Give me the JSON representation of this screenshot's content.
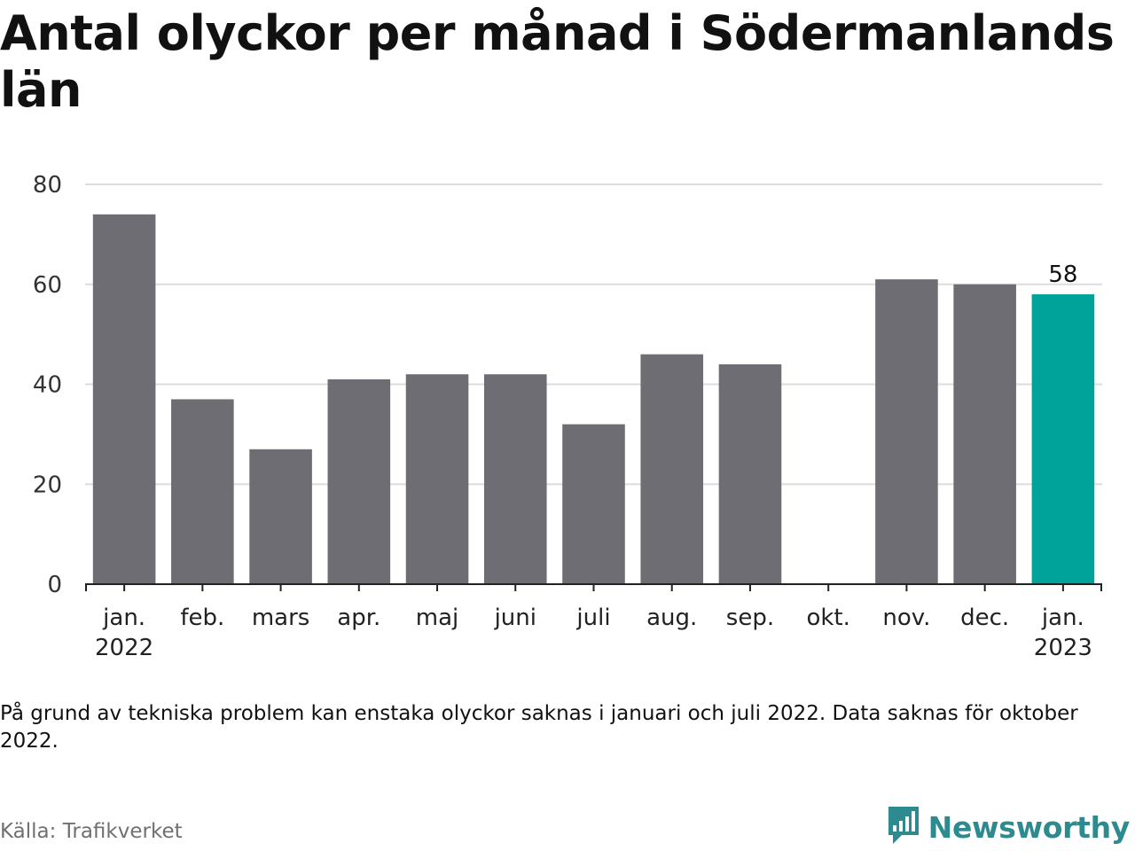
{
  "title": "Antal olyckor per månad i Södermanlands län",
  "note": "På grund av tekniska problem kan enstaka olyckor saknas i januari och juli 2022. Data saknas för oktober 2022.",
  "source": "Källa: Trafikverket",
  "brand": {
    "name": "Newsworthy",
    "icon": "newsworthy-logo-icon",
    "color": "#2d8b8f"
  },
  "chart_data": {
    "type": "bar",
    "categories": [
      "jan.",
      "feb.",
      "mars",
      "apr.",
      "maj",
      "juni",
      "juli",
      "aug.",
      "sep.",
      "okt.",
      "nov.",
      "dec.",
      "jan."
    ],
    "category_years": [
      "2022",
      "",
      "",
      "",
      "",
      "",
      "",
      "",
      "",
      "",
      "",
      "",
      "2023"
    ],
    "values": [
      74,
      37,
      27,
      41,
      42,
      42,
      32,
      46,
      44,
      null,
      61,
      60,
      58
    ],
    "highlight_index": 12,
    "data_labels": [
      "",
      "",
      "",
      "",
      "",
      "",
      "",
      "",
      "",
      "",
      "",
      "",
      "58"
    ],
    "yticks": [
      0,
      20,
      40,
      60,
      80
    ],
    "ylim": [
      0,
      80
    ],
    "grid": true,
    "colors": {
      "bar": "#6e6d73",
      "highlight": "#00a39a",
      "grid": "#dddddd",
      "axis": "#222222"
    }
  }
}
